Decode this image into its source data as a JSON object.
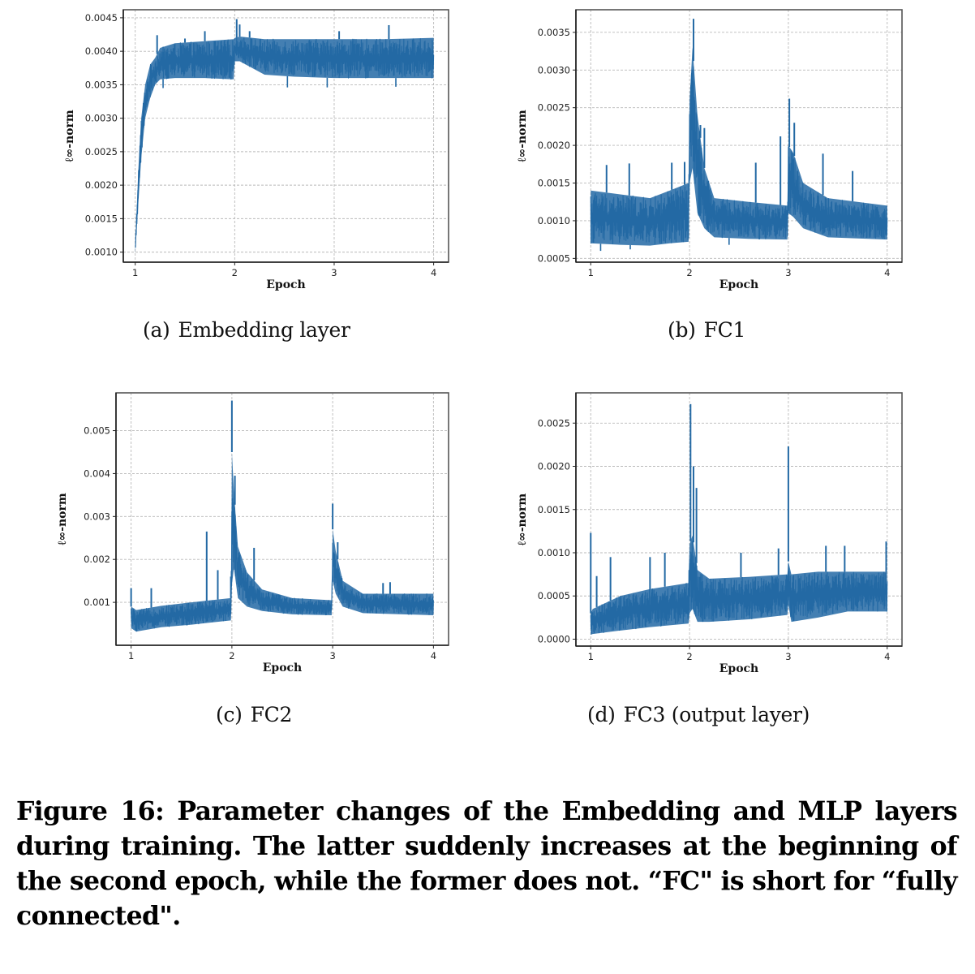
{
  "figure": {
    "caption": "Figure 16: Parameter changes of the Embedding and MLP layers during training. The latter suddenly increases at the beginning of the second epoch, while the former does not. “FC\" is short for “fully connected\".",
    "line_color": "#2369a4",
    "grid_color": "#b9b9b9"
  },
  "chart_data": [
    {
      "id": "a",
      "type": "line",
      "subcaption_label": "(a)",
      "subcaption": "Embedding layer",
      "title": "",
      "xlabel": "Epoch",
      "ylabel": "ℓ∞-norm",
      "xlim": [
        0.88,
        4.15
      ],
      "ylim": [
        0.00085,
        0.00462
      ],
      "xticks": [
        1,
        2,
        3,
        4
      ],
      "xtick_labels": [
        "1",
        "2",
        "3",
        "4"
      ],
      "yticks": [
        0.001,
        0.0015,
        0.002,
        0.0025,
        0.003,
        0.0035,
        0.004,
        0.0045
      ],
      "ytick_labels": [
        "0.0010",
        "0.0015",
        "0.0020",
        "0.0025",
        "0.0030",
        "0.0035",
        "0.0040",
        "0.0045"
      ],
      "grid": true,
      "legend": "none",
      "series": [
        {
          "name": "Embedding layer",
          "envelope": {
            "x": [
              1.0,
              1.03,
              1.06,
              1.1,
              1.15,
              1.2,
              1.25,
              1.4,
              1.7,
              1.99,
              2.0,
              2.05,
              2.3,
              2.6,
              3.0,
              3.5,
              4.0
            ],
            "lower": [
              0.00098,
              0.0017,
              0.0024,
              0.003,
              0.0033,
              0.0035,
              0.00358,
              0.0036,
              0.0036,
              0.00358,
              0.00385,
              0.00385,
              0.00365,
              0.00362,
              0.0036,
              0.0036,
              0.0036
            ],
            "upper": [
              0.0011,
              0.0022,
              0.003,
              0.0035,
              0.0038,
              0.0039,
              0.00405,
              0.00412,
              0.00415,
              0.00418,
              0.0042,
              0.00422,
              0.00418,
              0.00418,
              0.00418,
              0.00418,
              0.0042
            ]
          },
          "spikes": [
            {
              "x": 1.22,
              "y": 0.00424
            },
            {
              "x": 1.5,
              "y": 0.00419
            },
            {
              "x": 1.7,
              "y": 0.0043
            },
            {
              "x": 2.02,
              "y": 0.00448
            },
            {
              "x": 2.05,
              "y": 0.0044
            },
            {
              "x": 2.15,
              "y": 0.0043
            },
            {
              "x": 3.05,
              "y": 0.0043
            },
            {
              "x": 3.55,
              "y": 0.00439
            }
          ],
          "dips": [
            {
              "x": 1.28,
              "y": 0.00345
            },
            {
              "x": 2.53,
              "y": 0.00346
            },
            {
              "x": 2.93,
              "y": 0.00346
            },
            {
              "x": 3.62,
              "y": 0.00347
            }
          ]
        }
      ]
    },
    {
      "id": "b",
      "type": "line",
      "subcaption_label": "(b)",
      "subcaption": "FC1",
      "title": "",
      "xlabel": "Epoch",
      "ylabel": "ℓ∞-norm",
      "xlim": [
        0.85,
        4.15
      ],
      "ylim": [
        0.00045,
        0.0038
      ],
      "xticks": [
        1,
        2,
        3,
        4
      ],
      "xtick_labels": [
        "1",
        "2",
        "3",
        "4"
      ],
      "yticks": [
        0.0005,
        0.001,
        0.0015,
        0.002,
        0.0025,
        0.003,
        0.0035
      ],
      "ytick_labels": [
        "0.0005",
        "0.0010",
        "0.0015",
        "0.0020",
        "0.0025",
        "0.0030",
        "0.0035"
      ],
      "grid": true,
      "legend": "none",
      "series": [
        {
          "name": "FC1",
          "envelope": {
            "x": [
              1.0,
              1.3,
              1.6,
              1.8,
              1.99,
              2.0,
              2.03,
              2.08,
              2.15,
              2.25,
              2.6,
              2.99,
              3.0,
              3.05,
              3.15,
              3.4,
              4.0
            ],
            "lower": [
              0.0007,
              0.00068,
              0.00067,
              0.0007,
              0.00072,
              0.0015,
              0.0017,
              0.0011,
              0.0009,
              0.00078,
              0.00076,
              0.00075,
              0.0011,
              0.00105,
              0.0009,
              0.00078,
              0.00075
            ],
            "upper": [
              0.0014,
              0.00135,
              0.0013,
              0.0014,
              0.0015,
              0.0026,
              0.0033,
              0.0024,
              0.0017,
              0.0013,
              0.00125,
              0.0012,
              0.002,
              0.0019,
              0.0015,
              0.0013,
              0.0012
            ]
          },
          "spikes": [
            {
              "x": 1.16,
              "y": 0.00174
            },
            {
              "x": 1.39,
              "y": 0.00176
            },
            {
              "x": 1.82,
              "y": 0.00177
            },
            {
              "x": 1.95,
              "y": 0.00178
            },
            {
              "x": 2.04,
              "y": 0.00368
            },
            {
              "x": 2.11,
              "y": 0.00227
            },
            {
              "x": 2.15,
              "y": 0.00223
            },
            {
              "x": 2.67,
              "y": 0.00177
            },
            {
              "x": 2.92,
              "y": 0.00212
            },
            {
              "x": 3.01,
              "y": 0.00262
            },
            {
              "x": 3.06,
              "y": 0.0023
            },
            {
              "x": 3.35,
              "y": 0.00189
            },
            {
              "x": 3.65,
              "y": 0.00166
            }
          ],
          "dips": [
            {
              "x": 1.1,
              "y": 0.0006
            },
            {
              "x": 1.4,
              "y": 0.00062
            },
            {
              "x": 2.4,
              "y": 0.00068
            }
          ]
        }
      ]
    },
    {
      "id": "c",
      "type": "line",
      "subcaption_label": "(c)",
      "subcaption": "FC2",
      "title": "",
      "xlabel": "Epoch",
      "ylabel": "ℓ∞-norm",
      "xlim": [
        0.85,
        4.15
      ],
      "ylim": [
        0.0,
        0.00588
      ],
      "xticks": [
        1,
        2,
        3,
        4
      ],
      "xtick_labels": [
        "1",
        "2",
        "3",
        "4"
      ],
      "yticks": [
        0.001,
        0.002,
        0.003,
        0.004,
        0.005
      ],
      "ytick_labels": [
        "0.001",
        "0.002",
        "0.003",
        "0.004",
        "0.005"
      ],
      "grid": true,
      "legend": "none",
      "series": [
        {
          "name": "FC2",
          "envelope": {
            "x": [
              1.0,
              1.05,
              1.3,
              1.6,
              1.99,
              2.0,
              2.02,
              2.06,
              2.15,
              2.3,
              2.6,
              2.99,
              3.0,
              3.03,
              3.1,
              3.3,
              4.0
            ],
            "lower": [
              0.0004,
              0.00032,
              0.00042,
              0.00048,
              0.00058,
              0.0014,
              0.0018,
              0.0011,
              0.0009,
              0.0008,
              0.00072,
              0.0007,
              0.0015,
              0.0012,
              0.0009,
              0.00075,
              0.0007
            ],
            "upper": [
              0.0009,
              0.00082,
              0.00092,
              0.001,
              0.0011,
              0.0045,
              0.0036,
              0.0023,
              0.0017,
              0.0013,
              0.0011,
              0.00105,
              0.0027,
              0.0022,
              0.0015,
              0.0012,
              0.0012
            ]
          },
          "spikes": [
            {
              "x": 1.0,
              "y": 0.00133
            },
            {
              "x": 1.2,
              "y": 0.00133
            },
            {
              "x": 1.75,
              "y": 0.00265
            },
            {
              "x": 1.86,
              "y": 0.00175
            },
            {
              "x": 1.99,
              "y": 0.0016
            },
            {
              "x": 2.0,
              "y": 0.0057
            },
            {
              "x": 2.03,
              "y": 0.00395
            },
            {
              "x": 2.22,
              "y": 0.00227
            },
            {
              "x": 3.0,
              "y": 0.0033
            },
            {
              "x": 3.05,
              "y": 0.0024
            },
            {
              "x": 3.5,
              "y": 0.00145
            },
            {
              "x": 3.57,
              "y": 0.00147
            }
          ],
          "dips": []
        }
      ]
    },
    {
      "id": "d",
      "type": "line",
      "subcaption_label": "(d)",
      "subcaption": "FC3 (output layer)",
      "title": "",
      "xlabel": "Epoch",
      "ylabel": "ℓ∞-norm",
      "xlim": [
        0.85,
        4.15
      ],
      "ylim": [
        -8e-05,
        0.00285
      ],
      "xticks": [
        1,
        2,
        3,
        4
      ],
      "xtick_labels": [
        "1",
        "2",
        "3",
        "4"
      ],
      "yticks": [
        0.0,
        0.0005,
        0.001,
        0.0015,
        0.002,
        0.0025
      ],
      "ytick_labels": [
        "0.0000",
        "0.0005",
        "0.0010",
        "0.0015",
        "0.0020",
        "0.0025"
      ],
      "grid": true,
      "legend": "none",
      "series": [
        {
          "name": "FC3 (output layer)",
          "envelope": {
            "x": [
              1.0,
              1.02,
              1.3,
              1.6,
              1.99,
              2.0,
              2.03,
              2.08,
              2.2,
              2.6,
              2.99,
              3.0,
              3.03,
              3.3,
              3.6,
              4.0
            ],
            "lower": [
              5e-05,
              6e-05,
              0.0001,
              0.00014,
              0.00018,
              0.0003,
              0.00035,
              0.0002,
              0.0002,
              0.00023,
              0.00028,
              0.0004,
              0.0002,
              0.00025,
              0.00032,
              0.00032
            ],
            "upper": [
              0.0003,
              0.00035,
              0.0005,
              0.00058,
              0.00065,
              0.0011,
              0.0012,
              0.0008,
              0.0007,
              0.00072,
              0.00075,
              0.0009,
              0.00075,
              0.00078,
              0.00078,
              0.00078
            ]
          },
          "spikes": [
            {
              "x": 1.0,
              "y": 0.00123
            },
            {
              "x": 1.06,
              "y": 0.00073
            },
            {
              "x": 1.2,
              "y": 0.00095
            },
            {
              "x": 1.6,
              "y": 0.00095
            },
            {
              "x": 1.75,
              "y": 0.001
            },
            {
              "x": 2.01,
              "y": 0.00272
            },
            {
              "x": 2.04,
              "y": 0.002
            },
            {
              "x": 2.07,
              "y": 0.00175
            },
            {
              "x": 2.52,
              "y": 0.001
            },
            {
              "x": 2.9,
              "y": 0.00105
            },
            {
              "x": 3.0,
              "y": 0.00223
            },
            {
              "x": 3.38,
              "y": 0.00108
            },
            {
              "x": 3.57,
              "y": 0.00108
            },
            {
              "x": 3.99,
              "y": 0.00113
            }
          ],
          "dips": []
        }
      ]
    }
  ]
}
